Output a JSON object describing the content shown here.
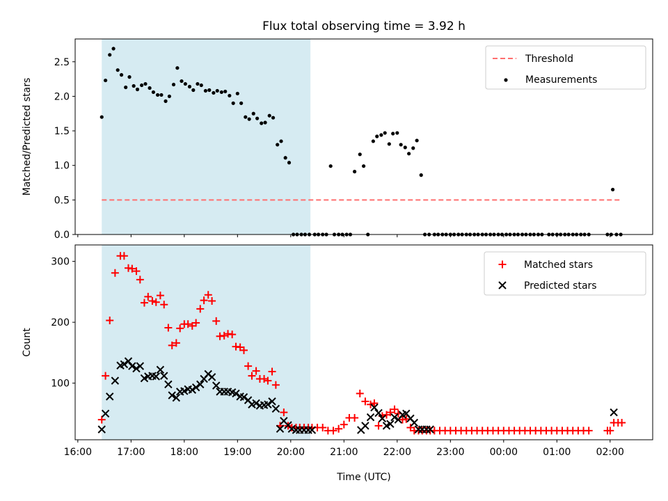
{
  "colors": {
    "observing_window": "#add8e6",
    "threshold": "#ff6f6f",
    "measurements": "#000000",
    "matched": "#ff0000",
    "predicted": "#000000"
  },
  "chart_data": [
    {
      "type": "scatter",
      "title": "Flux total observing time = 3.92 h",
      "xlabel": "",
      "ylabel": "Matched/Predicted stars",
      "x_unit": "hours since 16:00 UTC",
      "xlim": [
        -0.05,
        10.8
      ],
      "ylim": [
        0,
        2.83
      ],
      "yticks": [
        0.0,
        0.5,
        1.0,
        1.5,
        2.0,
        2.5
      ],
      "ytick_labels": [
        "0.0",
        "0.5",
        "1.0",
        "1.5",
        "2.0",
        "2.5"
      ],
      "observing_window": [
        0.45,
        4.37
      ],
      "legend_position": "top-right",
      "legend": [
        "Threshold",
        "Measurements"
      ],
      "series": [
        {
          "name": "Threshold",
          "kind": "dashed-line",
          "x": [
            0.45,
            10.2
          ],
          "y": [
            0.5,
            0.5
          ]
        },
        {
          "name": "Measurements",
          "kind": "dots",
          "x": [
            0.45,
            0.52,
            0.6,
            0.67,
            0.75,
            0.82,
            0.9,
            0.97,
            1.05,
            1.12,
            1.2,
            1.27,
            1.35,
            1.42,
            1.5,
            1.57,
            1.65,
            1.72,
            1.8,
            1.87,
            1.95,
            2.02,
            2.1,
            2.17,
            2.25,
            2.32,
            2.4,
            2.47,
            2.55,
            2.62,
            2.7,
            2.77,
            2.85,
            2.92,
            3.0,
            3.07,
            3.15,
            3.22,
            3.3,
            3.37,
            3.45,
            3.52,
            3.6,
            3.67,
            3.75,
            3.82,
            3.9,
            3.97,
            4.05,
            4.12,
            4.2,
            4.27,
            4.35,
            4.45,
            4.52,
            4.6,
            4.67,
            4.75,
            4.82,
            4.9,
            4.97,
            5.05,
            5.12,
            5.2,
            5.3,
            5.37,
            5.45,
            5.55,
            5.62,
            5.7,
            5.77,
            5.85,
            5.92,
            6.0,
            6.07,
            6.15,
            6.22,
            6.3,
            6.37,
            6.45,
            6.52,
            6.6,
            6.7,
            6.77,
            6.85,
            6.92,
            7.0,
            7.07,
            7.15,
            7.22,
            7.3,
            7.37,
            7.45,
            7.52,
            7.6,
            7.67,
            7.75,
            7.82,
            7.9,
            7.97,
            8.05,
            8.12,
            8.2,
            8.27,
            8.35,
            8.42,
            8.5,
            8.57,
            8.65,
            8.72,
            8.85,
            8.92,
            9.0,
            9.07,
            9.15,
            9.22,
            9.3,
            9.37,
            9.45,
            9.52,
            9.6,
            9.95,
            10.02,
            10.05,
            10.12,
            10.2
          ],
          "y": [
            1.7,
            2.23,
            2.6,
            2.69,
            2.38,
            2.31,
            2.13,
            2.28,
            2.15,
            2.1,
            2.16,
            2.18,
            2.12,
            2.06,
            2.02,
            2.02,
            1.93,
            2.0,
            2.17,
            2.41,
            2.22,
            2.18,
            2.14,
            2.09,
            2.18,
            2.16,
            2.08,
            2.09,
            2.05,
            2.08,
            2.06,
            2.07,
            2.01,
            1.9,
            2.04,
            1.9,
            1.7,
            1.67,
            1.75,
            1.68,
            1.61,
            1.62,
            1.72,
            1.69,
            1.3,
            1.35,
            1.11,
            1.04,
            0.0,
            0.0,
            0.0,
            0.0,
            0.0,
            0.0,
            0.0,
            0.0,
            0.0,
            0.99,
            0.0,
            0.0,
            0.0,
            0.0,
            0.0,
            0.91,
            1.16,
            0.99,
            0.0,
            1.35,
            1.42,
            1.44,
            1.47,
            1.31,
            1.46,
            1.47,
            1.3,
            1.26,
            1.17,
            1.25,
            1.36,
            0.86,
            0.0,
            0.0,
            0.0,
            0.0,
            0.0,
            0.0,
            0.0,
            0.0,
            0.0,
            0.0,
            0.0,
            0.0,
            0.0,
            0.0,
            0.0,
            0.0,
            0.0,
            0.0,
            0.0,
            0.0,
            0.0,
            0.0,
            0.0,
            0.0,
            0.0,
            0.0,
            0.0,
            0.0,
            0.0,
            0.0,
            0.0,
            0.0,
            0.0,
            0.0,
            0.0,
            0.0,
            0.0,
            0.0,
            0.0,
            0.0,
            0.0,
            0.0,
            0.0,
            0.65,
            0.0,
            0.0
          ]
        }
      ]
    },
    {
      "type": "scatter",
      "title": "",
      "xlabel": "Time (UTC)",
      "ylabel": "Count",
      "x_unit": "hours since 16:00 UTC",
      "xlim": [
        -0.05,
        10.8
      ],
      "ylim": [
        7,
        327
      ],
      "xticks": [
        0,
        1,
        2,
        3,
        4,
        5,
        6,
        7,
        8,
        9,
        10
      ],
      "xtick_labels": [
        "16:00",
        "17:00",
        "18:00",
        "19:00",
        "20:00",
        "21:00",
        "22:00",
        "23:00",
        "00:00",
        "01:00",
        "02:00"
      ],
      "yticks": [
        100,
        200,
        300
      ],
      "ytick_labels": [
        "100",
        "200",
        "300"
      ],
      "observing_window": [
        0.45,
        4.37
      ],
      "legend_position": "top-right",
      "legend": [
        "Matched stars",
        "Predicted stars"
      ],
      "series": [
        {
          "name": "Matched stars",
          "marker": "plus",
          "x": [
            0.45,
            0.52,
            0.6,
            0.7,
            0.8,
            0.87,
            0.95,
            1.02,
            1.1,
            1.17,
            1.25,
            1.32,
            1.4,
            1.47,
            1.55,
            1.62,
            1.7,
            1.77,
            1.85,
            1.92,
            2.0,
            2.07,
            2.15,
            2.22,
            2.3,
            2.37,
            2.45,
            2.52,
            2.6,
            2.67,
            2.75,
            2.82,
            2.9,
            2.97,
            3.05,
            3.12,
            3.2,
            3.27,
            3.35,
            3.42,
            3.5,
            3.57,
            3.65,
            3.72,
            3.8,
            3.87,
            3.95,
            4.02,
            4.1,
            4.17,
            4.25,
            4.33,
            4.4,
            4.5,
            4.6,
            4.7,
            4.8,
            4.9,
            5.0,
            5.1,
            5.2,
            5.3,
            5.4,
            5.5,
            5.57,
            5.65,
            5.72,
            5.8,
            5.87,
            5.95,
            6.02,
            6.1,
            6.17,
            6.25,
            6.32,
            6.4,
            6.47,
            6.55,
            6.62,
            6.7,
            6.8,
            6.9,
            7.0,
            7.1,
            7.2,
            7.3,
            7.4,
            7.5,
            7.6,
            7.7,
            7.8,
            7.9,
            8.0,
            8.1,
            8.2,
            8.3,
            8.4,
            8.5,
            8.6,
            8.7,
            8.8,
            8.9,
            9.0,
            9.1,
            9.2,
            9.3,
            9.4,
            9.5,
            9.6,
            9.95,
            10.0,
            10.07,
            10.15,
            10.22
          ],
          "y": [
            40,
            112,
            203,
            281,
            309,
            309,
            289,
            288,
            284,
            270,
            232,
            242,
            235,
            233,
            244,
            229,
            191,
            162,
            166,
            190,
            197,
            197,
            194,
            199,
            222,
            236,
            245,
            235,
            202,
            177,
            178,
            181,
            180,
            160,
            159,
            154,
            128,
            112,
            120,
            107,
            107,
            104,
            119,
            97,
            30,
            52,
            30,
            27,
            27,
            27,
            27,
            27,
            27,
            27,
            27,
            22,
            22,
            25,
            32,
            43,
            43,
            83,
            70,
            65,
            67,
            30,
            46,
            48,
            52,
            57,
            50,
            40,
            41,
            27,
            22,
            22,
            22,
            22,
            22,
            22,
            22,
            22,
            22,
            22,
            22,
            22,
            22,
            22,
            22,
            22,
            22,
            22,
            22,
            22,
            22,
            22,
            22,
            22,
            22,
            22,
            22,
            22,
            22,
            22,
            22,
            22,
            22,
            22,
            22,
            22,
            22,
            35,
            35,
            35
          ]
        },
        {
          "name": "Predicted stars",
          "marker": "x",
          "x": [
            0.45,
            0.52,
            0.6,
            0.7,
            0.8,
            0.87,
            0.95,
            1.02,
            1.1,
            1.17,
            1.25,
            1.32,
            1.4,
            1.47,
            1.55,
            1.62,
            1.7,
            1.77,
            1.85,
            1.92,
            2.0,
            2.07,
            2.15,
            2.22,
            2.3,
            2.37,
            2.45,
            2.52,
            2.6,
            2.67,
            2.75,
            2.82,
            2.9,
            2.97,
            3.05,
            3.12,
            3.2,
            3.27,
            3.35,
            3.42,
            3.5,
            3.57,
            3.65,
            3.72,
            3.8,
            3.87,
            3.95,
            4.02,
            4.1,
            4.17,
            4.25,
            4.33,
            4.4,
            5.32,
            5.4,
            5.5,
            5.57,
            5.65,
            5.72,
            5.8,
            5.87,
            5.95,
            6.02,
            6.1,
            6.17,
            6.25,
            6.32,
            6.4,
            6.47,
            6.55,
            6.62,
            10.07
          ],
          "y": [
            24,
            50,
            78,
            104,
            129,
            131,
            136,
            128,
            124,
            128,
            108,
            111,
            112,
            111,
            122,
            112,
            98,
            80,
            76,
            86,
            87,
            90,
            89,
            93,
            98,
            107,
            115,
            110,
            96,
            86,
            86,
            86,
            85,
            83,
            78,
            77,
            72,
            65,
            67,
            63,
            64,
            65,
            70,
            58,
            25,
            38,
            31,
            25,
            23,
            23,
            23,
            23,
            23,
            23,
            30,
            44,
            60,
            51,
            42,
            30,
            33,
            44,
            40,
            48,
            50,
            42,
            35,
            24,
            24,
            24,
            24,
            52
          ]
        }
      ]
    }
  ]
}
